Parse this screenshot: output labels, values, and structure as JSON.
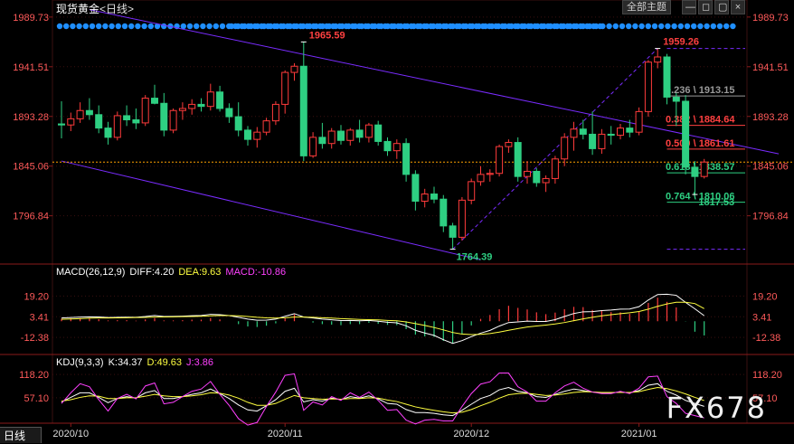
{
  "header": {
    "instrument": "现货黄金",
    "timeframe_label": "<日线>",
    "theme_button": "全部主题",
    "window_buttons": [
      "—",
      "◻",
      "▢",
      "×"
    ]
  },
  "footer": {
    "timeframe_tab": "日线",
    "watermark": "FX678"
  },
  "indicators": {
    "macd": {
      "name": "MACD(26,12,9)",
      "diff": "DIFF:4.20",
      "dea": "DEA:9.63",
      "macd": "MACD:-10.86"
    },
    "kdj": {
      "name": "KDJ(9,3,3)",
      "k": "K:34.37",
      "d": "D:49.63",
      "j": "J:3.86"
    }
  },
  "colors": {
    "up": "#ff3b3b",
    "down": "#2ecf82",
    "grid": "#3a0f0f",
    "price_axis": "#ff5a5a",
    "channel": "#7a2cff",
    "dash_line": "#ffa000",
    "diff": "#ffffff",
    "dea": "#ffff40",
    "j": "#ff40ff",
    "dot": "#1f8fff",
    "fib_red": "#ff4040",
    "fib_green": "#2ecf82",
    "fib_gray": "#9a9a9a"
  },
  "chart_data": [
    {
      "type": "candlestick",
      "title": "现货黄金 日线",
      "price_axis_labels": [
        "1989.73",
        "1941.51",
        "1893.28",
        "1845.06",
        "1796.84"
      ],
      "price_axis_values": [
        1989.73,
        1941.51,
        1893.28,
        1845.06,
        1796.84
      ],
      "ylim": [
        1750,
        1994
      ],
      "x_axis_labels": [
        {
          "label": "2020/10",
          "index": 1
        },
        {
          "label": "2020/11",
          "index": 24
        },
        {
          "label": "2020/12",
          "index": 44
        },
        {
          "label": "2021/01",
          "index": 62
        }
      ],
      "candles": [
        [
          1886,
          1908,
          1872,
          1885
        ],
        [
          1885,
          1897,
          1879,
          1891
        ],
        [
          1891,
          1907,
          1887,
          1899
        ],
        [
          1899,
          1911,
          1890,
          1895
        ],
        [
          1895,
          1904,
          1877,
          1882
        ],
        [
          1882,
          1888,
          1866,
          1873
        ],
        [
          1873,
          1898,
          1870,
          1894
        ],
        [
          1894,
          1904,
          1884,
          1890
        ],
        [
          1890,
          1901,
          1881,
          1887
        ],
        [
          1887,
          1914,
          1884,
          1911
        ],
        [
          1911,
          1924,
          1905,
          1906
        ],
        [
          1906,
          1916,
          1874,
          1880
        ],
        [
          1880,
          1901,
          1877,
          1899
        ],
        [
          1899,
          1907,
          1890,
          1901
        ],
        [
          1901,
          1910,
          1895,
          1905
        ],
        [
          1905,
          1911,
          1898,
          1903
        ],
        [
          1903,
          1925,
          1899,
          1917
        ],
        [
          1917,
          1923,
          1898,
          1901
        ],
        [
          1901,
          1906,
          1887,
          1893
        ],
        [
          1893,
          1907,
          1874,
          1880
        ],
        [
          1880,
          1884,
          1865,
          1871
        ],
        [
          1871,
          1883,
          1863,
          1878
        ],
        [
          1878,
          1892,
          1875,
          1889
        ],
        [
          1889,
          1908,
          1885,
          1905
        ],
        [
          1905,
          1938,
          1896,
          1936
        ],
        [
          1936,
          1945,
          1928,
          1942
        ],
        [
          1942,
          1965.59,
          1850,
          1855
        ],
        [
          1855,
          1878,
          1853,
          1873
        ],
        [
          1873,
          1887,
          1862,
          1867
        ],
        [
          1867,
          1882,
          1862,
          1879
        ],
        [
          1879,
          1885,
          1866,
          1870
        ],
        [
          1870,
          1882,
          1865,
          1880
        ],
        [
          1880,
          1890,
          1868,
          1873
        ],
        [
          1873,
          1887,
          1868,
          1885
        ],
        [
          1885,
          1889,
          1865,
          1869
        ],
        [
          1869,
          1873,
          1855,
          1860
        ],
        [
          1860,
          1871,
          1852,
          1867
        ],
        [
          1867,
          1872,
          1830,
          1837
        ],
        [
          1837,
          1841,
          1802,
          1811
        ],
        [
          1811,
          1823,
          1805,
          1818
        ],
        [
          1818,
          1825,
          1809,
          1813
        ],
        [
          1813,
          1817,
          1781,
          1787
        ],
        [
          1787,
          1790,
          1764.39,
          1776
        ],
        [
          1776,
          1815,
          1773,
          1812
        ],
        [
          1812,
          1833,
          1808,
          1830
        ],
        [
          1830,
          1845,
          1826,
          1837
        ],
        [
          1837,
          1842,
          1830,
          1838
        ],
        [
          1838,
          1866,
          1835,
          1864
        ],
        [
          1864,
          1871,
          1858,
          1868
        ],
        [
          1868,
          1873,
          1830,
          1835
        ],
        [
          1835,
          1850,
          1828,
          1840
        ],
        [
          1840,
          1843,
          1825,
          1829
        ],
        [
          1829,
          1836,
          1820,
          1833
        ],
        [
          1833,
          1855,
          1828,
          1852
        ],
        [
          1852,
          1877,
          1845,
          1873
        ],
        [
          1873,
          1888,
          1860,
          1881
        ],
        [
          1881,
          1890,
          1871,
          1876
        ],
        [
          1876,
          1898,
          1856,
          1862
        ],
        [
          1862,
          1881,
          1857,
          1876
        ],
        [
          1876,
          1884,
          1866,
          1875
        ],
        [
          1875,
          1886,
          1871,
          1882
        ],
        [
          1882,
          1890,
          1873,
          1878
        ],
        [
          1878,
          1902,
          1875,
          1898
        ],
        [
          1898,
          1948,
          1893,
          1946
        ],
        [
          1946,
          1959.26,
          1940,
          1951
        ],
        [
          1951,
          1954,
          1905,
          1912
        ],
        [
          1912,
          1916,
          1884,
          1908
        ],
        [
          1908,
          1914,
          1837,
          1844
        ],
        [
          1844,
          1850,
          1817.53,
          1835
        ],
        [
          1835,
          1852,
          1833,
          1849
        ]
      ],
      "annotations": [
        {
          "text": "1965.59",
          "index": 26,
          "price": 1965.59,
          "type": "high"
        },
        {
          "text": "1764.39",
          "index": 42,
          "price": 1764.39,
          "type": "low"
        },
        {
          "text": "1959.26",
          "index": 64,
          "price": 1959.26,
          "type": "high"
        },
        {
          "text": "1817.53",
          "index": 68,
          "price": 1817.53,
          "type": "low"
        }
      ],
      "fibonacci": [
        {
          "label": "0.236 \\ 1913.15",
          "price": 1913.15,
          "color": "gray"
        },
        {
          "label": "0.382 \\ 1884.64",
          "price": 1884.64,
          "color": "red"
        },
        {
          "label": "0.500 \\ 1861.61",
          "price": 1861.61,
          "color": "red"
        },
        {
          "label": "0.618 \\ 1838.57",
          "price": 1838.57,
          "color": "green"
        },
        {
          "label": "0.764 \\ 1810.06",
          "price": 1810.06,
          "color": "green"
        }
      ],
      "fib_extremes": [
        1959.26,
        1764.39
      ],
      "current_price_line": 1849,
      "channel_upper": [
        [
          3,
          1997
        ],
        [
          77,
          1857
        ]
      ],
      "channel_lower": [
        [
          0,
          1850
        ],
        [
          45,
          1754
        ]
      ],
      "dashed_trend": [
        [
          42,
          1764.39
        ],
        [
          64,
          1959.26
        ]
      ]
    },
    {
      "type": "macd",
      "title": "MACD(26,12,9)",
      "tick_labels": [
        "19.20",
        "3.41",
        "-12.38"
      ],
      "tick_values": [
        19.2,
        3.41,
        -12.38
      ],
      "ylim": [
        -24,
        34
      ],
      "diff": [
        2.5,
        2.8,
        3.2,
        3.4,
        3.3,
        2.8,
        3.0,
        3.1,
        3.0,
        3.6,
        4.4,
        3.6,
        3.7,
        3.9,
        4.2,
        4.4,
        5.3,
        5.0,
        4.3,
        3.0,
        1.6,
        0.8,
        0.9,
        1.6,
        3.8,
        5.8,
        3.2,
        2.5,
        1.6,
        1.1,
        0.5,
        0.6,
        0.3,
        0.6,
        0.0,
        -0.8,
        -1.2,
        -3.5,
        -6.9,
        -9.0,
        -10.8,
        -14.1,
        -16.9,
        -14.8,
        -11.8,
        -9.1,
        -7.0,
        -3.7,
        -1.0,
        -0.5,
        0.1,
        -0.2,
        -0.2,
        1.2,
        3.6,
        5.9,
        7.2,
        7.3,
        8.1,
        8.5,
        9.2,
        9.3,
        11.1,
        16.2,
        20.4,
        20.6,
        19.8,
        14.4,
        9.5,
        4.2
      ],
      "dea": [
        1.5,
        1.7,
        2.0,
        2.3,
        2.5,
        2.5,
        2.6,
        2.7,
        2.8,
        2.9,
        3.2,
        3.3,
        3.4,
        3.5,
        3.6,
        3.8,
        4.1,
        4.3,
        4.3,
        4.1,
        3.6,
        3.0,
        2.6,
        2.4,
        2.7,
        3.2,
        3.2,
        3.0,
        2.7,
        2.4,
        2.0,
        1.7,
        1.4,
        1.2,
        1.0,
        0.6,
        0.3,
        -0.5,
        -1.8,
        -3.2,
        -4.8,
        -6.6,
        -8.6,
        -9.8,
        -10.2,
        -10.0,
        -9.4,
        -8.3,
        -6.9,
        -5.6,
        -4.4,
        -3.6,
        -2.9,
        -2.1,
        -1.0,
        0.4,
        1.8,
        3.0,
        4.1,
        5.0,
        5.8,
        6.5,
        7.4,
        9.2,
        11.4,
        13.2,
        14.5,
        14.5,
        13.5,
        9.63
      ],
      "macd": [
        2.0,
        2.2,
        2.4,
        2.2,
        1.6,
        0.6,
        0.8,
        0.8,
        0.4,
        1.4,
        2.4,
        0.6,
        0.6,
        0.8,
        1.2,
        1.2,
        2.4,
        1.4,
        0.0,
        -2.2,
        -4.0,
        -4.4,
        -3.4,
        -1.6,
        2.2,
        5.2,
        0.0,
        -1.0,
        -2.2,
        -2.6,
        -3.0,
        -2.2,
        -2.2,
        -1.2,
        -2.0,
        -2.8,
        -3.0,
        -6.0,
        -10.2,
        -11.6,
        -12.0,
        -15.0,
        -16.6,
        -10.0,
        -3.2,
        1.8,
        4.8,
        9.2,
        11.8,
        10.2,
        9.0,
        6.8,
        5.4,
        6.6,
        9.2,
        11.0,
        10.8,
        8.6,
        8.0,
        7.0,
        6.8,
        5.6,
        7.4,
        14.0,
        18.0,
        14.8,
        10.6,
        -0.2,
        -8.0,
        -10.86
      ]
    },
    {
      "type": "kdj",
      "title": "KDJ(9,3,3)",
      "tick_labels": [
        "118.20",
        "57.10"
      ],
      "tick_values": [
        118.2,
        57.1
      ],
      "ylim": [
        -10,
        140
      ],
      "k": [
        46,
        58,
        70,
        70,
        58,
        44,
        55,
        60,
        56,
        70,
        76,
        55,
        55,
        60,
        66,
        70,
        80,
        68,
        55,
        38,
        25,
        22,
        36,
        52,
        74,
        82,
        46,
        52,
        48,
        56,
        52,
        60,
        56,
        62,
        54,
        42,
        40,
        26,
        18,
        18,
        16,
        12,
        10,
        24,
        40,
        55,
        63,
        78,
        84,
        74,
        70,
        60,
        58,
        66,
        74,
        80,
        76,
        72,
        70,
        70,
        72,
        70,
        76,
        90,
        94,
        74,
        64,
        50,
        42,
        34.37
      ],
      "d": [
        48,
        52,
        58,
        62,
        61,
        55,
        55,
        57,
        57,
        61,
        66,
        62,
        60,
        60,
        62,
        65,
        70,
        69,
        64,
        56,
        45,
        37,
        37,
        42,
        53,
        63,
        57,
        55,
        53,
        54,
        53,
        55,
        55,
        57,
        56,
        51,
        47,
        40,
        33,
        28,
        24,
        20,
        17,
        19,
        26,
        36,
        45,
        56,
        65,
        68,
        69,
        66,
        63,
        64,
        67,
        71,
        73,
        72,
        71,
        71,
        71,
        71,
        73,
        79,
        84,
        81,
        75,
        67,
        58,
        49.63
      ],
      "j": [
        42,
        70,
        94,
        86,
        52,
        22,
        55,
        66,
        54,
        88,
        96,
        41,
        45,
        60,
        74,
        80,
        100,
        66,
        37,
        2,
        -15,
        -8,
        34,
        72,
        116,
        120,
        24,
        46,
        38,
        60,
        50,
        70,
        58,
        72,
        50,
        24,
        26,
        -2,
        -12,
        -2,
        0,
        -4,
        -4,
        34,
        68,
        93,
        99,
        122,
        122,
        86,
        72,
        48,
        48,
        70,
        88,
        98,
        82,
        72,
        68,
        68,
        74,
        68,
        82,
        112,
        114,
        60,
        42,
        16,
        10,
        3.86
      ]
    }
  ]
}
